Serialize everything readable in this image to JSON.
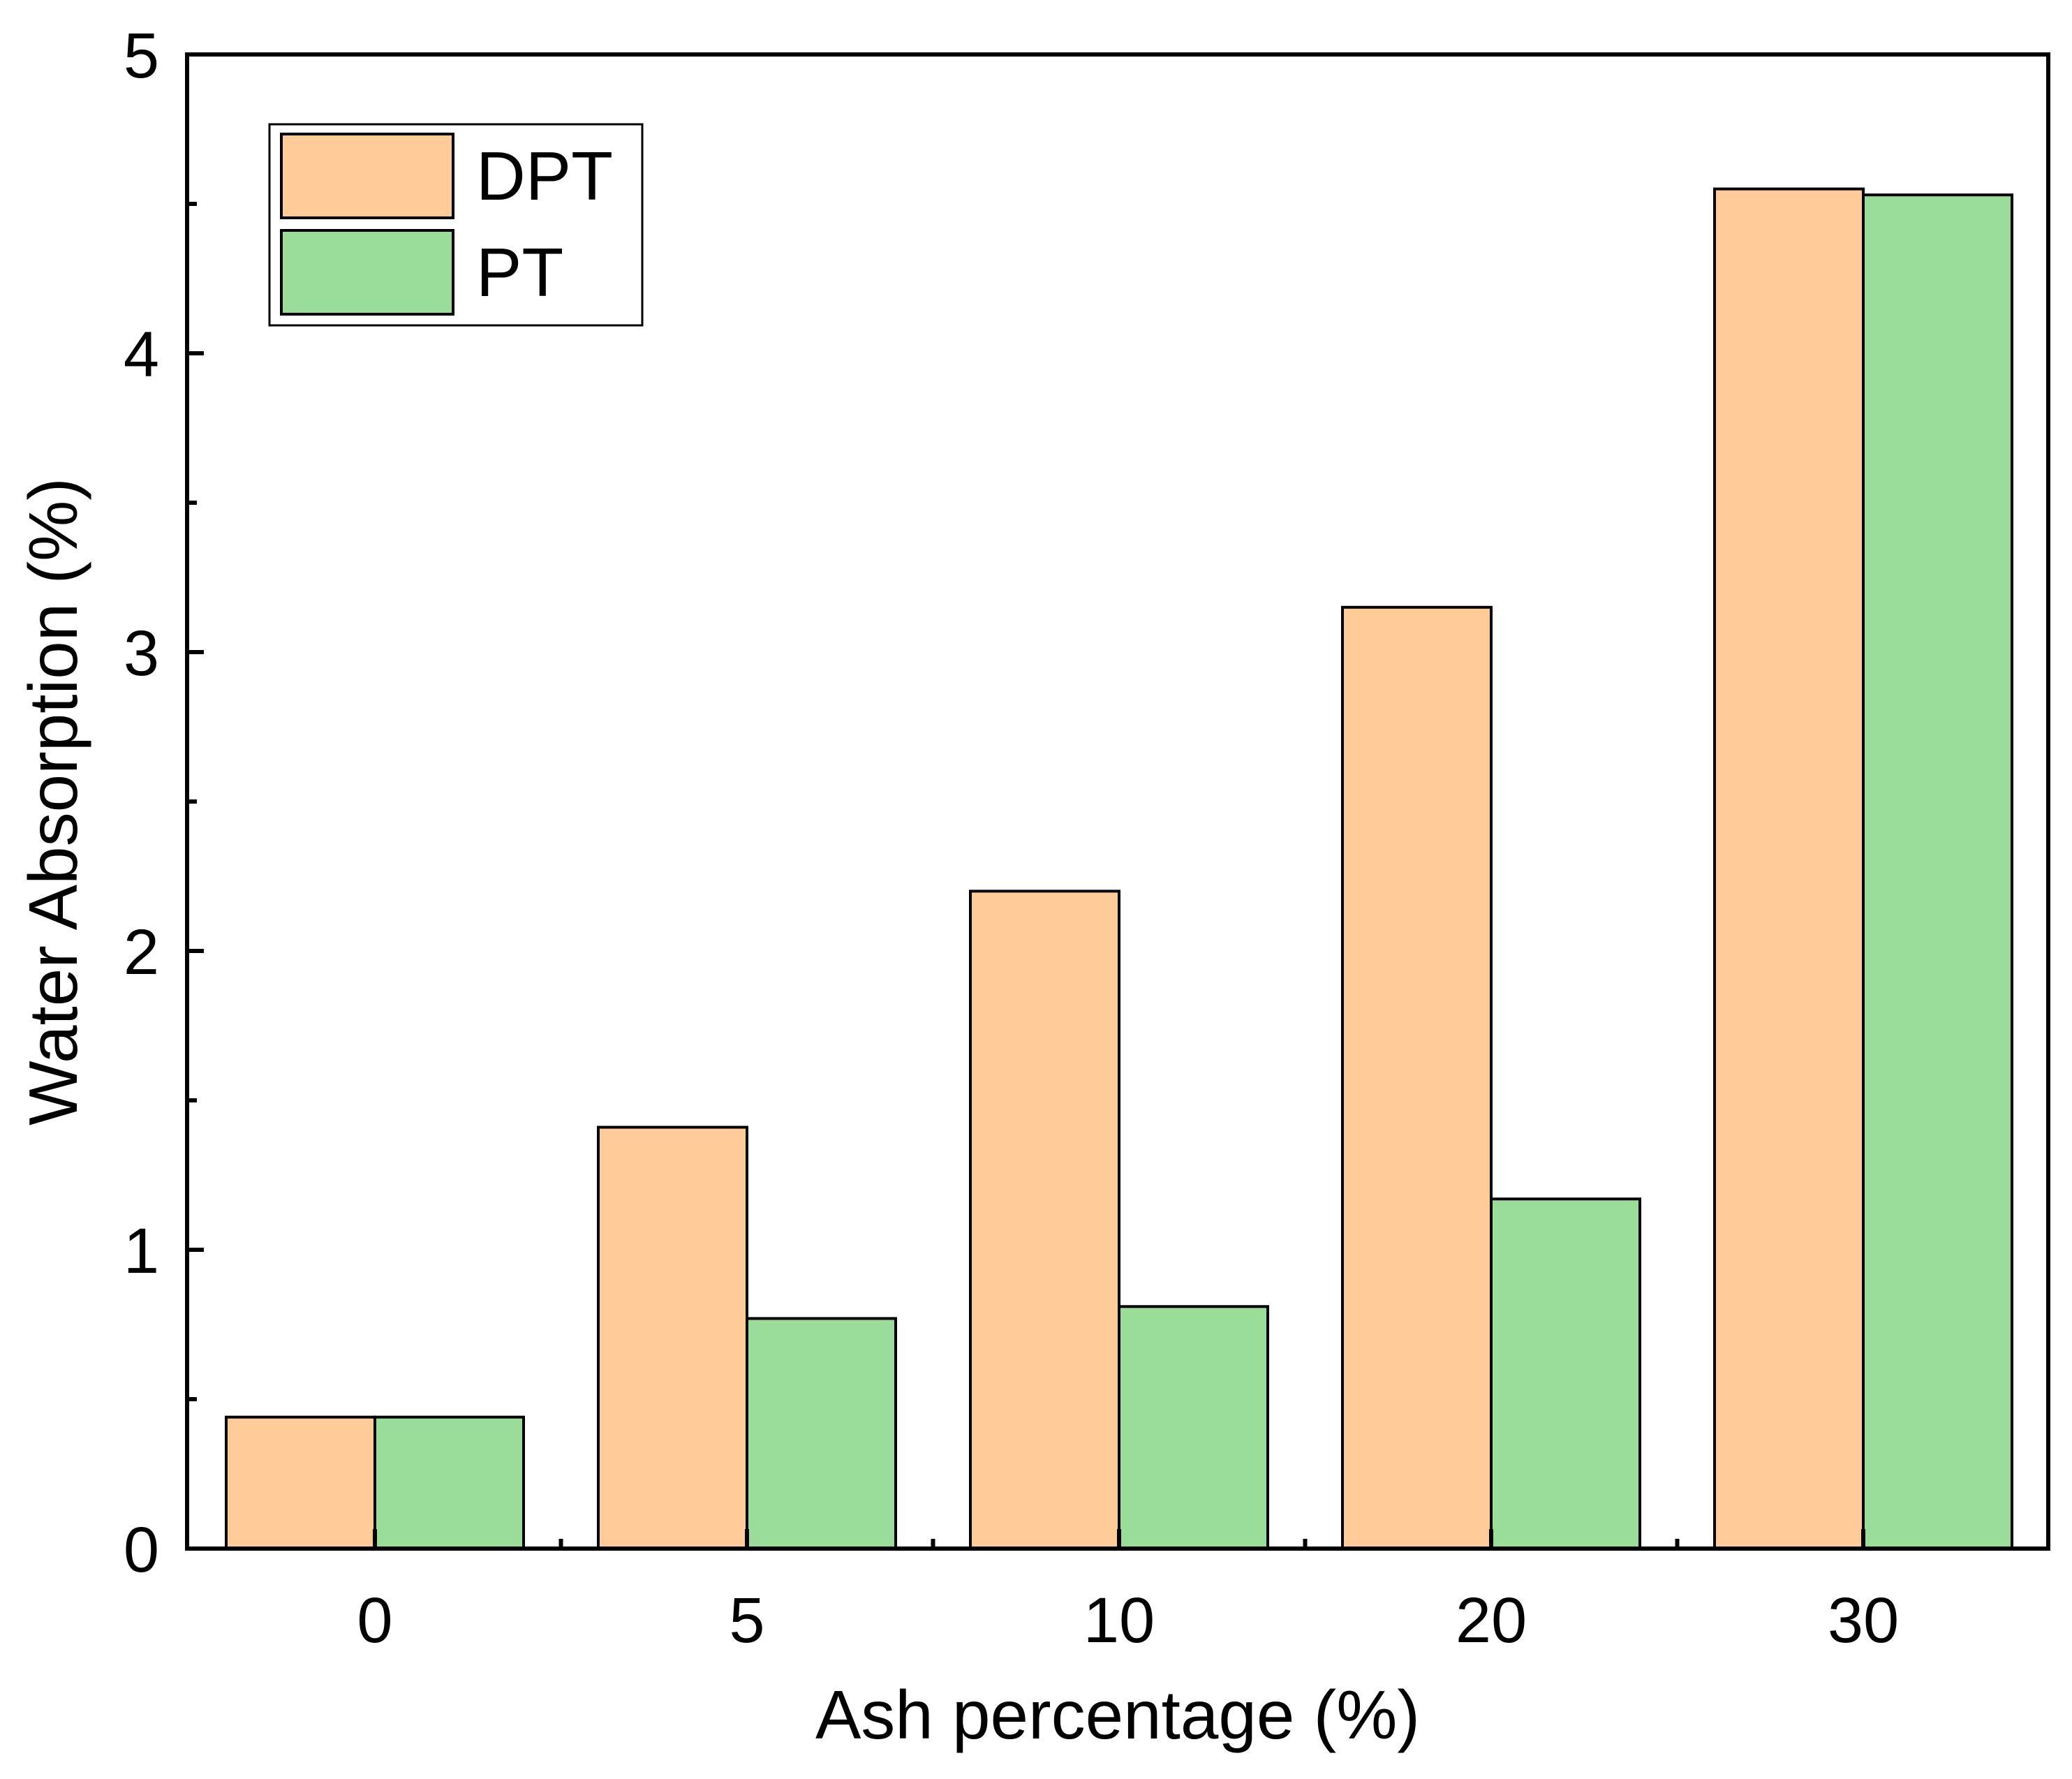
{
  "chart_data": {
    "type": "bar",
    "title": "",
    "xlabel": "Ash percentage (%)",
    "ylabel": "Water Absorption (%)",
    "categories": [
      "0",
      "5",
      "10",
      "20",
      "30"
    ],
    "series": [
      {
        "name": "DPT",
        "color": "#FFCC99",
        "values": [
          0.44,
          1.41,
          2.2,
          3.15,
          4.55
        ]
      },
      {
        "name": "PT",
        "color": "#99DD99",
        "values": [
          0.44,
          0.77,
          0.81,
          1.17,
          4.53
        ]
      }
    ],
    "ylim": [
      0,
      5
    ],
    "yticks": [
      "0",
      "1",
      "2",
      "3",
      "4",
      "5"
    ],
    "legend": "top-left",
    "grid": false
  }
}
